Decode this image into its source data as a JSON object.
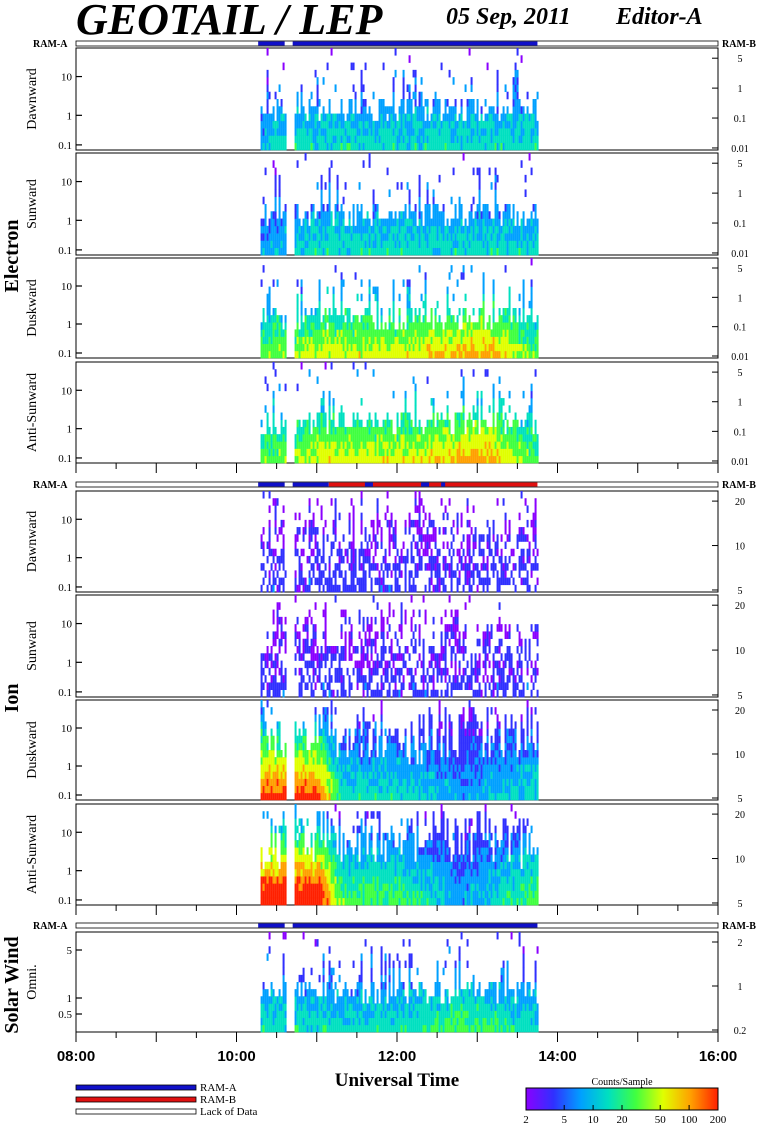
{
  "header": {
    "title": "GEOTAIL / LEP",
    "date": "05 Sep, 2011",
    "editor": "Editor-A"
  },
  "mode_bar": {
    "left_label": "RAM-A",
    "right_label": "RAM-B"
  },
  "groups": [
    {
      "name": "Electron",
      "panels": [
        "Dawnward",
        "Sunward",
        "Duskward",
        "Anti-Sunward"
      ]
    },
    {
      "name": "Ion",
      "panels": [
        "Dawnward",
        "Sunward",
        "Duskward",
        "Anti-Sunward"
      ]
    },
    {
      "name": "Solar Wind",
      "panels": [
        "Omni."
      ]
    }
  ],
  "x_axis": {
    "label": "Universal Time",
    "tick_labels": [
      "08:00",
      "10:00",
      "12:00",
      "14:00",
      "16:00"
    ],
    "range_hours": [
      8,
      16
    ]
  },
  "legend": {
    "items": [
      {
        "label": "RAM-A",
        "color": "#1010c8"
      },
      {
        "label": "RAM-B",
        "color": "#e01010"
      },
      {
        "label": "Lack of Data",
        "color": "#ffffff"
      }
    ]
  },
  "colorbar": {
    "title": "Counts/Sample",
    "tick_labels": [
      "2",
      "5",
      "10",
      "20",
      "50",
      "100",
      "200"
    ],
    "colors": [
      "#8a00ff",
      "#3030ff",
      "#00a0ff",
      "#00e0c0",
      "#40ff40",
      "#e0ff00",
      "#ffa000",
      "#ff2000"
    ]
  },
  "chart_data": [
    {
      "type": "heatmap",
      "title": "",
      "group": "Electron",
      "panel": "Dawnward",
      "xlabel": "Universal Time",
      "x_range": [
        8,
        16
      ],
      "left_axis_ticks": [
        "10",
        "1",
        "0.1"
      ],
      "right_axis_ticks": [
        "5",
        "1",
        "0.1",
        "0.01"
      ],
      "yscale": "log",
      "data_interval_hours": [
        10.3,
        13.75
      ],
      "gap_hours": [
        10.6,
        10.7
      ],
      "intensity_profile": [
        [
          10.3,
          2
        ],
        [
          10.5,
          3
        ],
        [
          11.0,
          3
        ],
        [
          12.0,
          3
        ],
        [
          13.0,
          3
        ],
        [
          13.7,
          3
        ]
      ]
    },
    {
      "type": "heatmap",
      "title": "",
      "group": "Electron",
      "panel": "Sunward",
      "xlabel": "Universal Time",
      "x_range": [
        8,
        16
      ],
      "left_axis_ticks": [
        "10",
        "1",
        "0.1"
      ],
      "right_axis_ticks": [
        "5",
        "1",
        "0.1",
        "0.01"
      ],
      "yscale": "log",
      "data_interval_hours": [
        10.3,
        13.75
      ],
      "gap_hours": [
        10.6,
        10.7
      ],
      "intensity_profile": [
        [
          10.3,
          2
        ],
        [
          11.0,
          3
        ],
        [
          12.0,
          3
        ],
        [
          13.0,
          3
        ],
        [
          13.7,
          3
        ]
      ]
    },
    {
      "type": "heatmap",
      "title": "",
      "group": "Electron",
      "panel": "Duskward",
      "xlabel": "Universal Time",
      "x_range": [
        8,
        16
      ],
      "left_axis_ticks": [
        "10",
        "1",
        "0.1"
      ],
      "right_axis_ticks": [
        "5",
        "1",
        "0.1",
        "0.01"
      ],
      "yscale": "log",
      "data_interval_hours": [
        10.3,
        13.75
      ],
      "gap_hours": [
        10.6,
        10.7
      ],
      "intensity_profile": [
        [
          10.3,
          4
        ],
        [
          11.0,
          5
        ],
        [
          12.0,
          5
        ],
        [
          13.1,
          6
        ],
        [
          13.7,
          4
        ]
      ]
    },
    {
      "type": "heatmap",
      "title": "",
      "group": "Electron",
      "panel": "Anti-Sunward",
      "xlabel": "Universal Time",
      "x_range": [
        8,
        16
      ],
      "left_axis_ticks": [
        "10",
        "1",
        "0.1"
      ],
      "right_axis_ticks": [
        "5",
        "1",
        "0.1",
        "0.01"
      ],
      "yscale": "log",
      "data_interval_hours": [
        10.3,
        13.75
      ],
      "gap_hours": [
        10.6,
        10.7
      ],
      "intensity_profile": [
        [
          10.3,
          4
        ],
        [
          11.0,
          5
        ],
        [
          12.0,
          5
        ],
        [
          13.1,
          6
        ],
        [
          13.7,
          4
        ]
      ]
    },
    {
      "type": "heatmap",
      "title": "",
      "group": "Ion",
      "panel": "Dawnward",
      "xlabel": "Universal Time",
      "x_range": [
        8,
        16
      ],
      "left_axis_ticks": [
        "10",
        "1",
        "0.1"
      ],
      "right_axis_ticks": [
        "20",
        "10",
        "5"
      ],
      "yscale": "log",
      "data_interval_hours": [
        10.3,
        13.75
      ],
      "gap_hours": [
        10.6,
        10.7
      ],
      "intensity_profile": [
        [
          10.3,
          1
        ],
        [
          11.0,
          1
        ],
        [
          12.0,
          1
        ],
        [
          13.0,
          1
        ],
        [
          13.7,
          1
        ]
      ]
    },
    {
      "type": "heatmap",
      "title": "",
      "group": "Ion",
      "panel": "Sunward",
      "xlabel": "Universal Time",
      "x_range": [
        8,
        16
      ],
      "left_axis_ticks": [
        "10",
        "1",
        "0.1"
      ],
      "right_axis_ticks": [
        "20",
        "10",
        "5"
      ],
      "yscale": "log",
      "data_interval_hours": [
        10.3,
        13.75
      ],
      "gap_hours": [
        10.6,
        10.7
      ],
      "intensity_profile": [
        [
          10.3,
          1
        ],
        [
          11.0,
          1
        ],
        [
          12.0,
          1
        ],
        [
          13.0,
          1
        ],
        [
          13.7,
          1
        ]
      ]
    },
    {
      "type": "heatmap",
      "title": "",
      "group": "Ion",
      "panel": "Duskward",
      "xlabel": "Universal Time",
      "x_range": [
        8,
        16
      ],
      "left_axis_ticks": [
        "10",
        "1",
        "0.1"
      ],
      "right_axis_ticks": [
        "20",
        "10",
        "5"
      ],
      "yscale": "log",
      "data_interval_hours": [
        10.3,
        13.75
      ],
      "gap_hours": [
        10.6,
        10.7
      ],
      "intensity_profile": [
        [
          10.3,
          7
        ],
        [
          11.0,
          7
        ],
        [
          11.3,
          3
        ],
        [
          12.0,
          3
        ],
        [
          12.8,
          2
        ],
        [
          13.7,
          3
        ]
      ]
    },
    {
      "type": "heatmap",
      "title": "",
      "group": "Ion",
      "panel": "Anti-Sunward",
      "xlabel": "Universal Time",
      "x_range": [
        8,
        16
      ],
      "left_axis_ticks": [
        "10",
        "1",
        "0.1"
      ],
      "right_axis_ticks": [
        "20",
        "10",
        "5"
      ],
      "yscale": "log",
      "data_interval_hours": [
        10.3,
        13.75
      ],
      "gap_hours": [
        10.6,
        10.7
      ],
      "intensity_profile": [
        [
          10.3,
          8
        ],
        [
          11.0,
          8
        ],
        [
          11.3,
          4
        ],
        [
          12.0,
          4
        ],
        [
          12.8,
          2
        ],
        [
          13.7,
          4
        ]
      ]
    },
    {
      "type": "heatmap",
      "title": "",
      "group": "Solar Wind",
      "panel": "Omni.",
      "xlabel": "Universal Time",
      "x_range": [
        8,
        16
      ],
      "left_axis_ticks": [
        "5",
        "1",
        "0.5"
      ],
      "right_axis_ticks": [
        "2",
        "1",
        "0.2"
      ],
      "yscale": "log",
      "data_interval_hours": [
        10.3,
        13.75
      ],
      "gap_hours": [
        10.6,
        10.7
      ],
      "intensity_profile": [
        [
          10.3,
          3
        ],
        [
          11.0,
          3
        ],
        [
          12.0,
          3
        ],
        [
          12.8,
          4
        ],
        [
          13.7,
          3
        ]
      ]
    }
  ]
}
